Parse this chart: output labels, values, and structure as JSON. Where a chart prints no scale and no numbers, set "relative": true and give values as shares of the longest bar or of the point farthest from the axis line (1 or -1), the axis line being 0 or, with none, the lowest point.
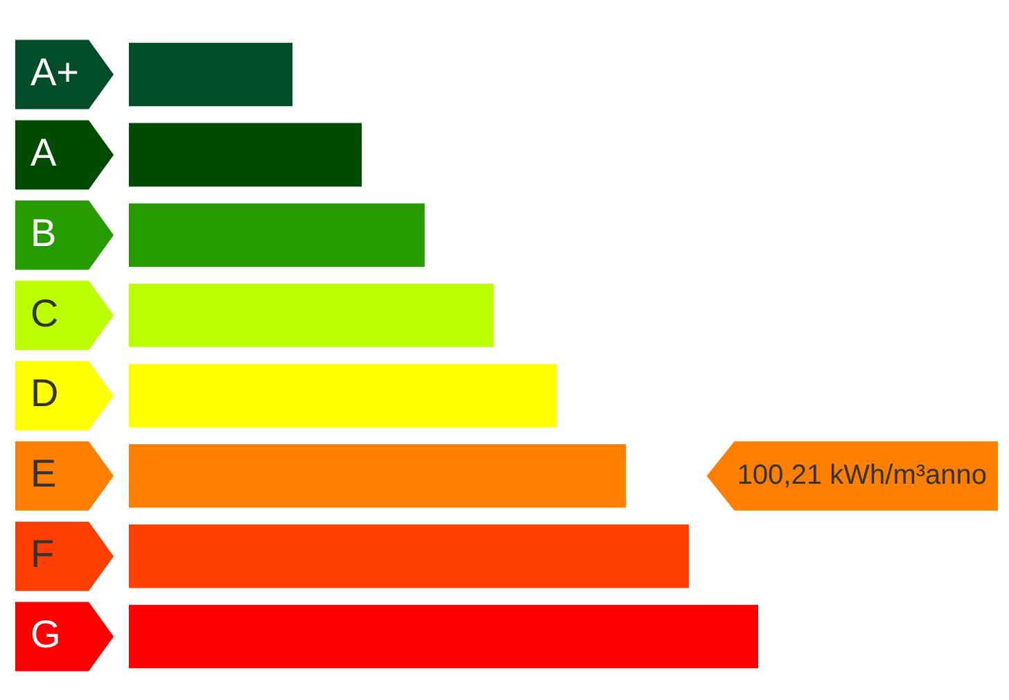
{
  "chart_data": {
    "type": "bar",
    "orientation": "horizontal",
    "relative": true,
    "legend": false,
    "categories": [
      "A+",
      "A",
      "B",
      "C",
      "D",
      "E",
      "F",
      "G"
    ],
    "values": [
      0.26,
      0.37,
      0.47,
      0.58,
      0.68,
      0.79,
      0.89,
      1
    ],
    "colors": [
      "#004d2a",
      "#004b00",
      "#259b00",
      "#bbff00",
      "#ffff00",
      "#ff7f00",
      "#ff3f00",
      "#ff0000"
    ],
    "annotations": [
      "100,21 kWh/m³anno"
    ]
  }
}
